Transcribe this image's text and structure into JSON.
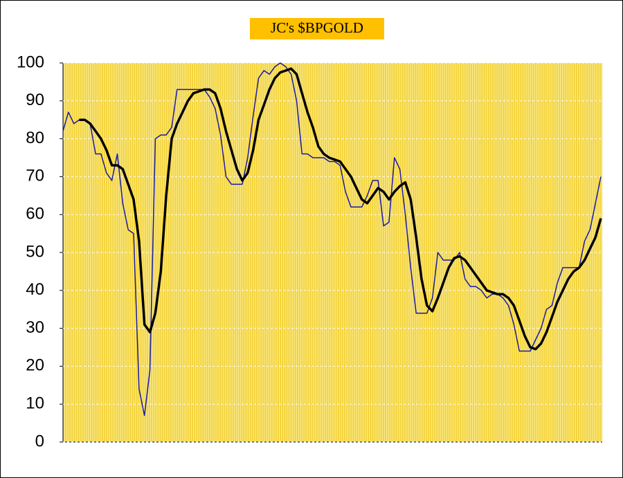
{
  "chart_data": {
    "type": "line",
    "title": "JC's $BPGOLD",
    "ylim": [
      0,
      100
    ],
    "yticks": [
      0,
      10,
      20,
      30,
      40,
      50,
      60,
      70,
      80,
      90,
      100
    ],
    "grid": true,
    "series": [
      {
        "color": "#1a1aa0",
        "values": [
          82,
          87,
          84,
          85,
          85,
          84,
          76,
          76,
          71,
          69,
          76,
          63,
          56,
          55,
          14,
          7,
          19,
          80,
          81,
          81,
          83,
          93,
          93,
          93,
          93,
          93,
          93,
          91,
          88,
          81,
          70,
          68,
          68,
          68,
          75,
          86,
          96,
          98,
          97,
          99,
          100,
          99,
          97,
          90,
          76,
          76,
          75,
          75,
          75,
          74,
          74,
          73,
          66,
          62,
          62,
          62,
          65,
          69,
          69,
          57,
          58,
          75,
          72,
          60,
          46,
          34,
          34,
          34,
          38,
          50,
          48,
          48,
          48,
          50,
          43,
          41,
          41,
          40,
          38,
          39,
          39,
          38,
          36,
          31,
          24,
          24,
          24,
          27,
          30,
          35,
          36,
          42,
          46,
          46,
          46,
          46,
          53,
          56,
          63,
          70
        ]
      },
      {
        "color": "#000000",
        "values": [
          null,
          null,
          null,
          85,
          85,
          84,
          82,
          80,
          77,
          73,
          73,
          72,
          68,
          64,
          53,
          31,
          29,
          34,
          45,
          65,
          80,
          84,
          87,
          90,
          92,
          92.5,
          93,
          93,
          92,
          88,
          82,
          77,
          72,
          69,
          71,
          77,
          85,
          89,
          93,
          96,
          97.5,
          98,
          98.5,
          97,
          92,
          87,
          83,
          78,
          76,
          75,
          74.5,
          74,
          72,
          70,
          67,
          64,
          63,
          65,
          67,
          66,
          64,
          66,
          67.5,
          68.5,
          64,
          54,
          43,
          36,
          34.5,
          38,
          42,
          46,
          48.5,
          49,
          48,
          46,
          44,
          42,
          40,
          39.5,
          39,
          39,
          38,
          36,
          32,
          28,
          25,
          24.5,
          26,
          29,
          33,
          37,
          40,
          43,
          45,
          46,
          48,
          51,
          54,
          59
        ]
      }
    ]
  }
}
